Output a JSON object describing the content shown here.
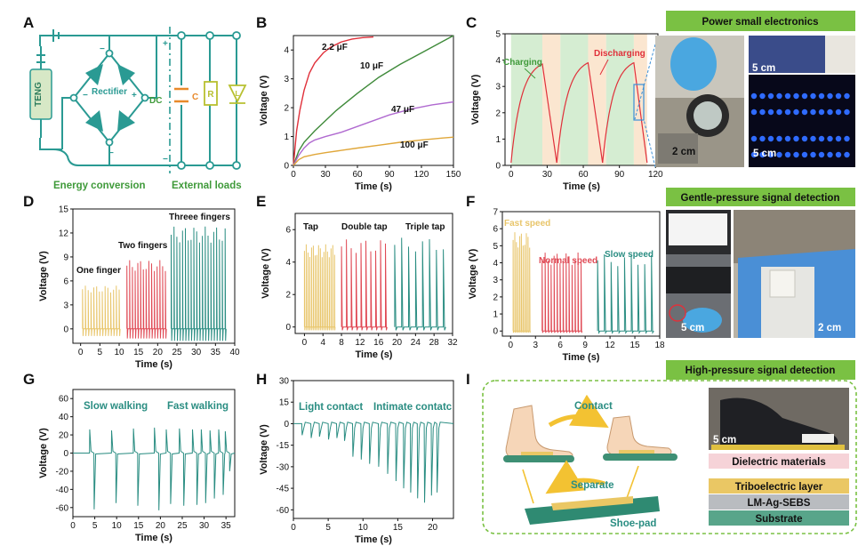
{
  "panels": {
    "A": {
      "letter": "A",
      "teng": "TENG",
      "rectifier": "Rectifier",
      "dc": "DC",
      "c": "C",
      "r": "R",
      "l": "L",
      "plus": "+",
      "minus": "−",
      "energy_conversion": "Energy conversion",
      "external_loads": "External loads",
      "colors": {
        "teal": "#2a9a93",
        "green_text": "#3f9a3a",
        "orange": "#e8892a",
        "yellowgreen": "#b8c030",
        "teng_fill": "#d7e8c6"
      }
    },
    "B": {
      "letter": "B"
    },
    "C": {
      "letter": "C",
      "banner": "Power small electronics",
      "photo_labels": [
        "2 cm",
        "5 cm",
        "5 cm"
      ]
    },
    "D": {
      "letter": "D"
    },
    "E": {
      "letter": "E"
    },
    "F": {
      "letter": "F",
      "banner": "Gentle-pressure signal detection",
      "photo_labels": [
        "5 cm",
        "2 cm"
      ]
    },
    "G": {
      "letter": "G"
    },
    "H": {
      "letter": "H"
    },
    "I": {
      "letter": "I",
      "banner": "High-pressure signal detection",
      "contact": "Contact",
      "separate": "Separate",
      "shoe_pad": "Shoe-pad",
      "photo_label": "5 cm",
      "layers": [
        {
          "label": "Dielectric materials",
          "color": "#f6d3d8"
        },
        {
          "label": "Triboelectric layer",
          "color": "#eac764"
        },
        {
          "label": "LM-Ag-SEBS",
          "color": "#b9bcc0"
        },
        {
          "label": "Substrate",
          "color": "#58a58a"
        }
      ]
    }
  },
  "chart_data": [
    {
      "panel": "B",
      "type": "line",
      "xlabel": "Time (s)",
      "ylabel": "Voltage (V)",
      "xlim": [
        0,
        150
      ],
      "ylim": [
        0,
        4.5
      ],
      "xticks": [
        0,
        30,
        60,
        90,
        120,
        150
      ],
      "yticks": [
        0,
        1,
        2,
        3,
        4
      ],
      "series": [
        {
          "name": "2.2 μF",
          "color": "#e0303a",
          "x": [
            0,
            3,
            6,
            10,
            15,
            20,
            28,
            35,
            45,
            55,
            65,
            75
          ],
          "y": [
            0,
            1.2,
            1.9,
            2.6,
            3.2,
            3.55,
            3.9,
            4.1,
            4.28,
            4.38,
            4.43,
            4.45
          ]
        },
        {
          "name": "10 μF",
          "color": "#3f8a3a",
          "x": [
            0,
            5,
            10,
            20,
            30,
            40,
            60,
            80,
            100,
            120,
            140,
            150
          ],
          "y": [
            0,
            0.5,
            0.8,
            1.2,
            1.55,
            1.9,
            2.5,
            3.05,
            3.5,
            3.9,
            4.3,
            4.5
          ]
        },
        {
          "name": "47 μF",
          "color": "#b06ad0",
          "x": [
            0,
            5,
            10,
            15,
            20,
            30,
            45,
            60,
            75,
            90,
            110,
            130,
            150
          ],
          "y": [
            0,
            0.35,
            0.6,
            0.78,
            0.88,
            1.0,
            1.15,
            1.35,
            1.55,
            1.75,
            1.95,
            2.1,
            2.2
          ]
        },
        {
          "name": "100 μF",
          "color": "#e0a73a",
          "x": [
            0,
            5,
            10,
            20,
            30,
            45,
            60,
            80,
            100,
            120,
            140,
            150
          ],
          "y": [
            0,
            0.2,
            0.3,
            0.38,
            0.44,
            0.52,
            0.6,
            0.7,
            0.8,
            0.88,
            0.95,
            0.98
          ]
        }
      ]
    },
    {
      "panel": "C",
      "type": "line",
      "xlabel": "Time (s)",
      "ylabel": "Voltage (V)",
      "xlim": [
        -5,
        122
      ],
      "ylim": [
        0,
        5
      ],
      "xticks": [
        0,
        30,
        60,
        90,
        120
      ],
      "yticks": [
        0,
        1,
        2,
        3,
        4,
        5
      ],
      "annotations": [
        "Charging",
        "Discharging"
      ],
      "color": "#e0303a",
      "cycles": [
        {
          "start": 0,
          "peak_time": 26,
          "peak": 3.85,
          "end": 38
        },
        {
          "start": 38,
          "peak_time": 64,
          "peak": 3.9,
          "end": 76
        },
        {
          "start": 76,
          "peak_time": 102,
          "peak": 3.9,
          "end": 113
        }
      ],
      "shading": [
        {
          "from": 0,
          "to": 26,
          "kind": "charging"
        },
        {
          "from": 26,
          "to": 41,
          "kind": "discharging"
        },
        {
          "from": 41,
          "to": 64,
          "kind": "charging"
        },
        {
          "from": 64,
          "to": 79,
          "kind": "discharging"
        },
        {
          "from": 79,
          "to": 102,
          "kind": "charging"
        },
        {
          "from": 102,
          "to": 113,
          "kind": "discharging"
        }
      ]
    },
    {
      "panel": "D",
      "type": "line",
      "xlabel": "Time (s)",
      "ylabel": "Voltage (V)",
      "xlim": [
        -2,
        40
      ],
      "ylim": [
        -1.8,
        15
      ],
      "xticks": [
        0,
        5,
        10,
        15,
        20,
        25,
        30,
        35,
        40
      ],
      "yticks": [
        0,
        3,
        6,
        9,
        12,
        15
      ],
      "groups": [
        {
          "label": "One finger",
          "color": "#e8c56a",
          "t0": 0.5,
          "t1": 10,
          "n": 14,
          "peak": 5.4,
          "trough": -0.9
        },
        {
          "label": "Two fingers",
          "color": "#e04a55",
          "t0": 12,
          "t1": 22,
          "n": 15,
          "peak": 8.6,
          "trough": -1.2
        },
        {
          "label": "Threee fingers",
          "color": "#2a8d82",
          "t0": 23.5,
          "t1": 37.5,
          "n": 20,
          "peak": 12.8,
          "trough": -1.5
        }
      ]
    },
    {
      "panel": "E",
      "type": "line",
      "xlabel": "Time (s)",
      "ylabel": "Voltage (V)",
      "xlim": [
        -2,
        32
      ],
      "ylim": [
        -0.4,
        7
      ],
      "xticks": [
        0,
        4,
        8,
        12,
        16,
        20,
        24,
        28,
        32
      ],
      "yticks": [
        0,
        2,
        4,
        6
      ],
      "groups": [
        {
          "label": "Tap",
          "color": "#e8c56a",
          "t0": 0,
          "t1": 6.5,
          "n": 18,
          "peak": 5.1,
          "trough": -0.2
        },
        {
          "label": "Double tap",
          "color": "#e04a55",
          "t0": 8,
          "t1": 17.5,
          "n": 10,
          "peak": 5.4,
          "trough": -0.2
        },
        {
          "label": "Triple tap",
          "color": "#2a8d82",
          "t0": 19.5,
          "t1": 30,
          "n": 8,
          "peak": 5.5,
          "trough": -0.2
        }
      ]
    },
    {
      "panel": "F",
      "type": "line",
      "xlabel": "Time (s)",
      "ylabel": "Voltage (V)",
      "xlim": [
        -1,
        18
      ],
      "ylim": [
        -0.3,
        7
      ],
      "xticks": [
        0,
        3,
        6,
        9,
        12,
        15,
        18
      ],
      "yticks": [
        0,
        1,
        2,
        3,
        4,
        5,
        6,
        7
      ],
      "groups": [
        {
          "label": "Fast speed",
          "color": "#e8c56a",
          "t0": 0.3,
          "t1": 2.3,
          "n": 11,
          "peak": 5.8,
          "trough": -0.1
        },
        {
          "label": "Normal speed",
          "color": "#e04a55",
          "t0": 3.8,
          "t1": 8.5,
          "n": 14,
          "peak": 4.6,
          "trough": -0.1
        },
        {
          "label": "Slow speed",
          "color": "#2a8d82",
          "t0": 10.5,
          "t1": 17,
          "n": 9,
          "peak": 4.5,
          "trough": -0.1
        }
      ]
    },
    {
      "panel": "G",
      "type": "line",
      "xlabel": "Time (s)",
      "ylabel": "Voltage (V)",
      "xlim": [
        0,
        37
      ],
      "ylim": [
        -70,
        70
      ],
      "xticks": [
        0,
        5,
        10,
        15,
        20,
        25,
        30,
        35
      ],
      "yticks": [
        -60,
        -40,
        -20,
        0,
        20,
        40,
        60
      ],
      "annotations": [
        "Slow walking",
        "Fast walking"
      ],
      "color": "#2a8d82",
      "spikes_t": [
        3.8,
        8.8,
        13.8,
        18.6,
        21.3,
        24.3,
        27.3,
        29.3,
        31.3,
        33.3,
        34.8
      ],
      "spikes_up": [
        26,
        25,
        27,
        28,
        26,
        27,
        26,
        26,
        25,
        26,
        24
      ],
      "spikes_down": [
        -62,
        -55,
        -58,
        -63,
        -56,
        -58,
        -57,
        -55,
        -50,
        -46,
        -20
      ]
    },
    {
      "panel": "H",
      "type": "line",
      "xlabel": "Time (s)",
      "ylabel": "Voltage (V)",
      "xlim": [
        0,
        23
      ],
      "ylim": [
        -66,
        30
      ],
      "xticks": [
        0,
        5,
        10,
        15,
        20
      ],
      "yticks": [
        -60,
        -45,
        -30,
        -15,
        0,
        15,
        30
      ],
      "annotations": [
        "Light contact",
        "Intimate contatc"
      ],
      "color": "#2a8d82",
      "spikes_t": [
        1.2,
        2.5,
        3.7,
        5.0,
        6.2,
        7.3,
        8.5,
        9.7,
        10.9,
        12.2,
        13.5,
        14.7,
        15.8,
        16.8,
        17.8,
        18.8,
        19.8,
        20.6
      ],
      "spikes_down": [
        -8,
        -10,
        -9,
        -11,
        -10,
        -12,
        -23,
        -25,
        -28,
        -30,
        -35,
        -40,
        -45,
        -48,
        -52,
        -55,
        -50,
        -48
      ]
    }
  ]
}
